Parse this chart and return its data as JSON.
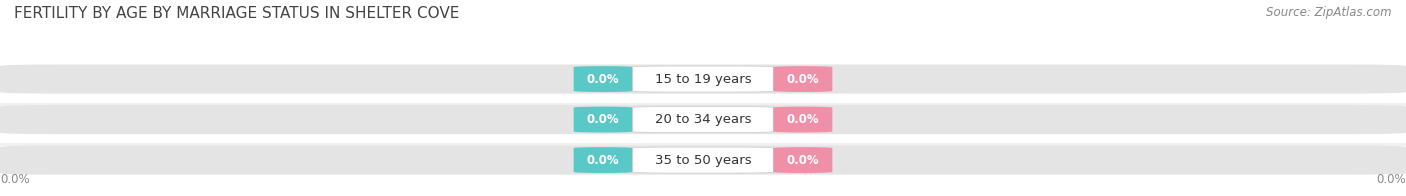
{
  "title": "FERTILITY BY AGE BY MARRIAGE STATUS IN SHELTER COVE",
  "source": "Source: ZipAtlas.com",
  "categories": [
    "15 to 19 years",
    "20 to 34 years",
    "35 to 50 years"
  ],
  "married_values": [
    0.0,
    0.0,
    0.0
  ],
  "unmarried_values": [
    0.0,
    0.0,
    0.0
  ],
  "married_color": "#5bc8c8",
  "unmarried_color": "#f090a8",
  "bar_bg_color": "#e4e4e4",
  "background_color": "#ffffff",
  "title_fontsize": 11,
  "source_fontsize": 8.5,
  "label_fontsize": 9.5,
  "value_fontsize": 8.5,
  "legend_fontsize": 9.5,
  "axis_label_left": "0.0%",
  "axis_label_right": "0.0%",
  "bar_sep_color": "#f0f0f0"
}
